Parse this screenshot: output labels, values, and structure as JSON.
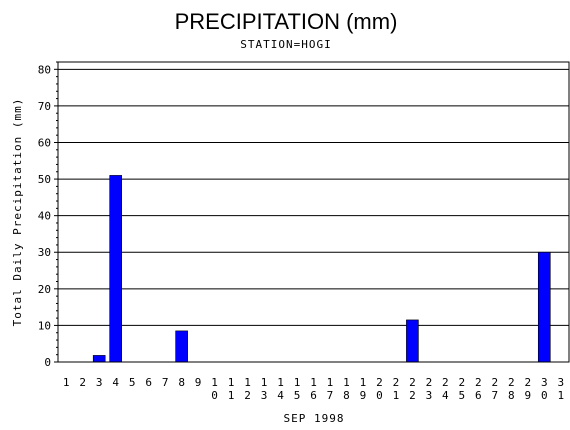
{
  "chart_data": {
    "type": "bar",
    "title": "PRECIPITATION (mm)",
    "subtitle": "STATION=HOGI",
    "xlabel": "SEP 1998",
    "ylabel": "Total Daily Precipitation (mm)",
    "ylim": [
      0,
      82
    ],
    "yticks": [
      0,
      10,
      20,
      30,
      40,
      50,
      60,
      70,
      80
    ],
    "grid": true,
    "categories": [
      "1",
      "2",
      "3",
      "4",
      "5",
      "6",
      "7",
      "8",
      "9",
      "10",
      "11",
      "12",
      "13",
      "14",
      "15",
      "16",
      "17",
      "18",
      "19",
      "20",
      "21",
      "22",
      "23",
      "24",
      "25",
      "26",
      "27",
      "28",
      "29",
      "30",
      "31"
    ],
    "values": [
      0,
      0,
      1.8,
      51,
      0,
      0,
      0,
      8.5,
      0,
      0,
      0,
      0,
      0,
      0,
      0,
      0,
      0,
      0,
      0,
      0,
      0,
      11.5,
      0,
      0,
      0,
      0,
      0,
      0,
      0,
      30,
      0
    ],
    "bar_color": "#0000ff"
  }
}
